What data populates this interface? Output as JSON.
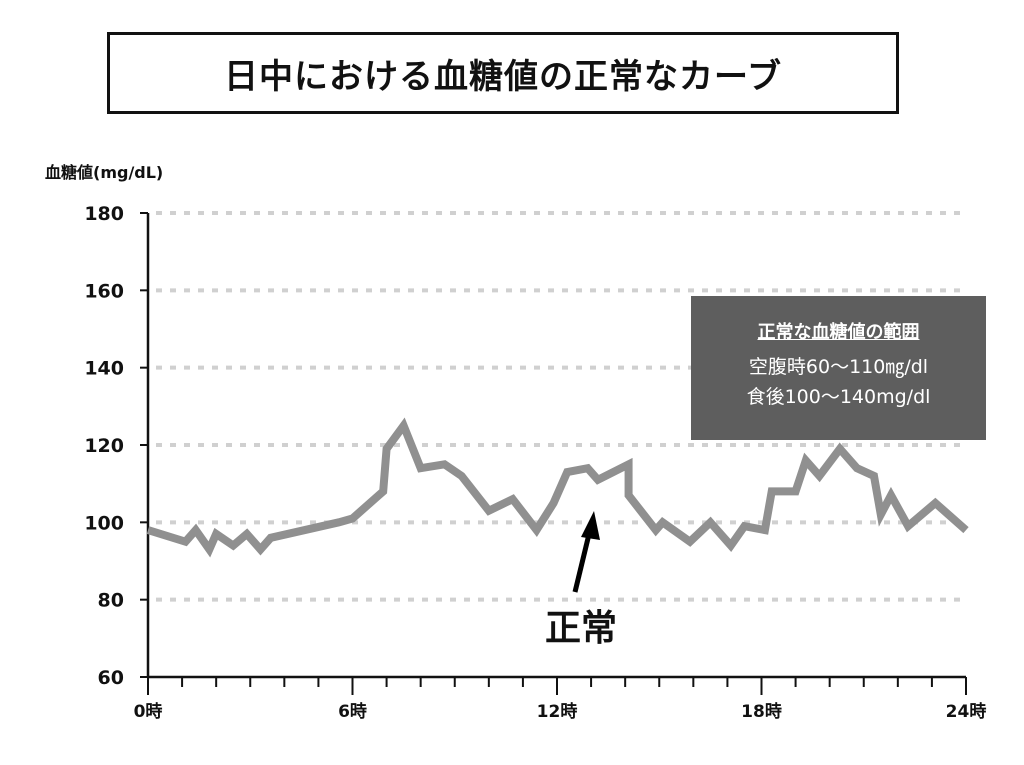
{
  "title": "日中における血糖値の正常なカーブ",
  "chart_data": {
    "type": "line",
    "title": "日中における血糖値の正常なカーブ",
    "ylabel": "血糖値(mg/dL)",
    "xlabel": "",
    "ylim": [
      60,
      180
    ],
    "xlim": [
      0,
      24
    ],
    "yticks": [
      60,
      80,
      100,
      120,
      140,
      160,
      180
    ],
    "xticks": [
      {
        "v": 0,
        "label": "0時"
      },
      {
        "v": 6,
        "label": "6時"
      },
      {
        "v": 12,
        "label": "12時"
      },
      {
        "v": 18,
        "label": "18時"
      },
      {
        "v": 24,
        "label": "24時"
      }
    ],
    "grid": "horizontal dotted",
    "line_color": "#909090",
    "x": [
      0,
      1.1,
      1.4,
      1.8,
      2.0,
      2.5,
      2.9,
      3.3,
      3.6,
      5.6,
      6.0,
      6.9,
      7.0,
      7.5,
      8.0,
      8.7,
      9.2,
      10.0,
      10.7,
      11.4,
      11.9,
      12.3,
      12.9,
      13.2,
      14.1,
      14.1,
      14.9,
      15.1,
      15.9,
      16.5,
      17.1,
      17.5,
      18.1,
      18.3,
      19.0,
      19.3,
      19.7,
      20.3,
      20.8,
      21.3,
      21.5,
      21.8,
      22.3,
      23.1,
      24
    ],
    "y": [
      98,
      95,
      98,
      93,
      97,
      94,
      97,
      93,
      96,
      100,
      101,
      108,
      119,
      125,
      114,
      115,
      112,
      103,
      106,
      98,
      105,
      113,
      114,
      111,
      115,
      107,
      98,
      100,
      95,
      100,
      94,
      99,
      98,
      108,
      108,
      116,
      112,
      119,
      114,
      112,
      102,
      107,
      99,
      105,
      98
    ],
    "annotation": "正常"
  },
  "legend_box": {
    "heading": "正常な血糖値の範囲",
    "lines": [
      "空腹時60〜110㎎/dl",
      "食後100〜140mg/dl"
    ]
  }
}
